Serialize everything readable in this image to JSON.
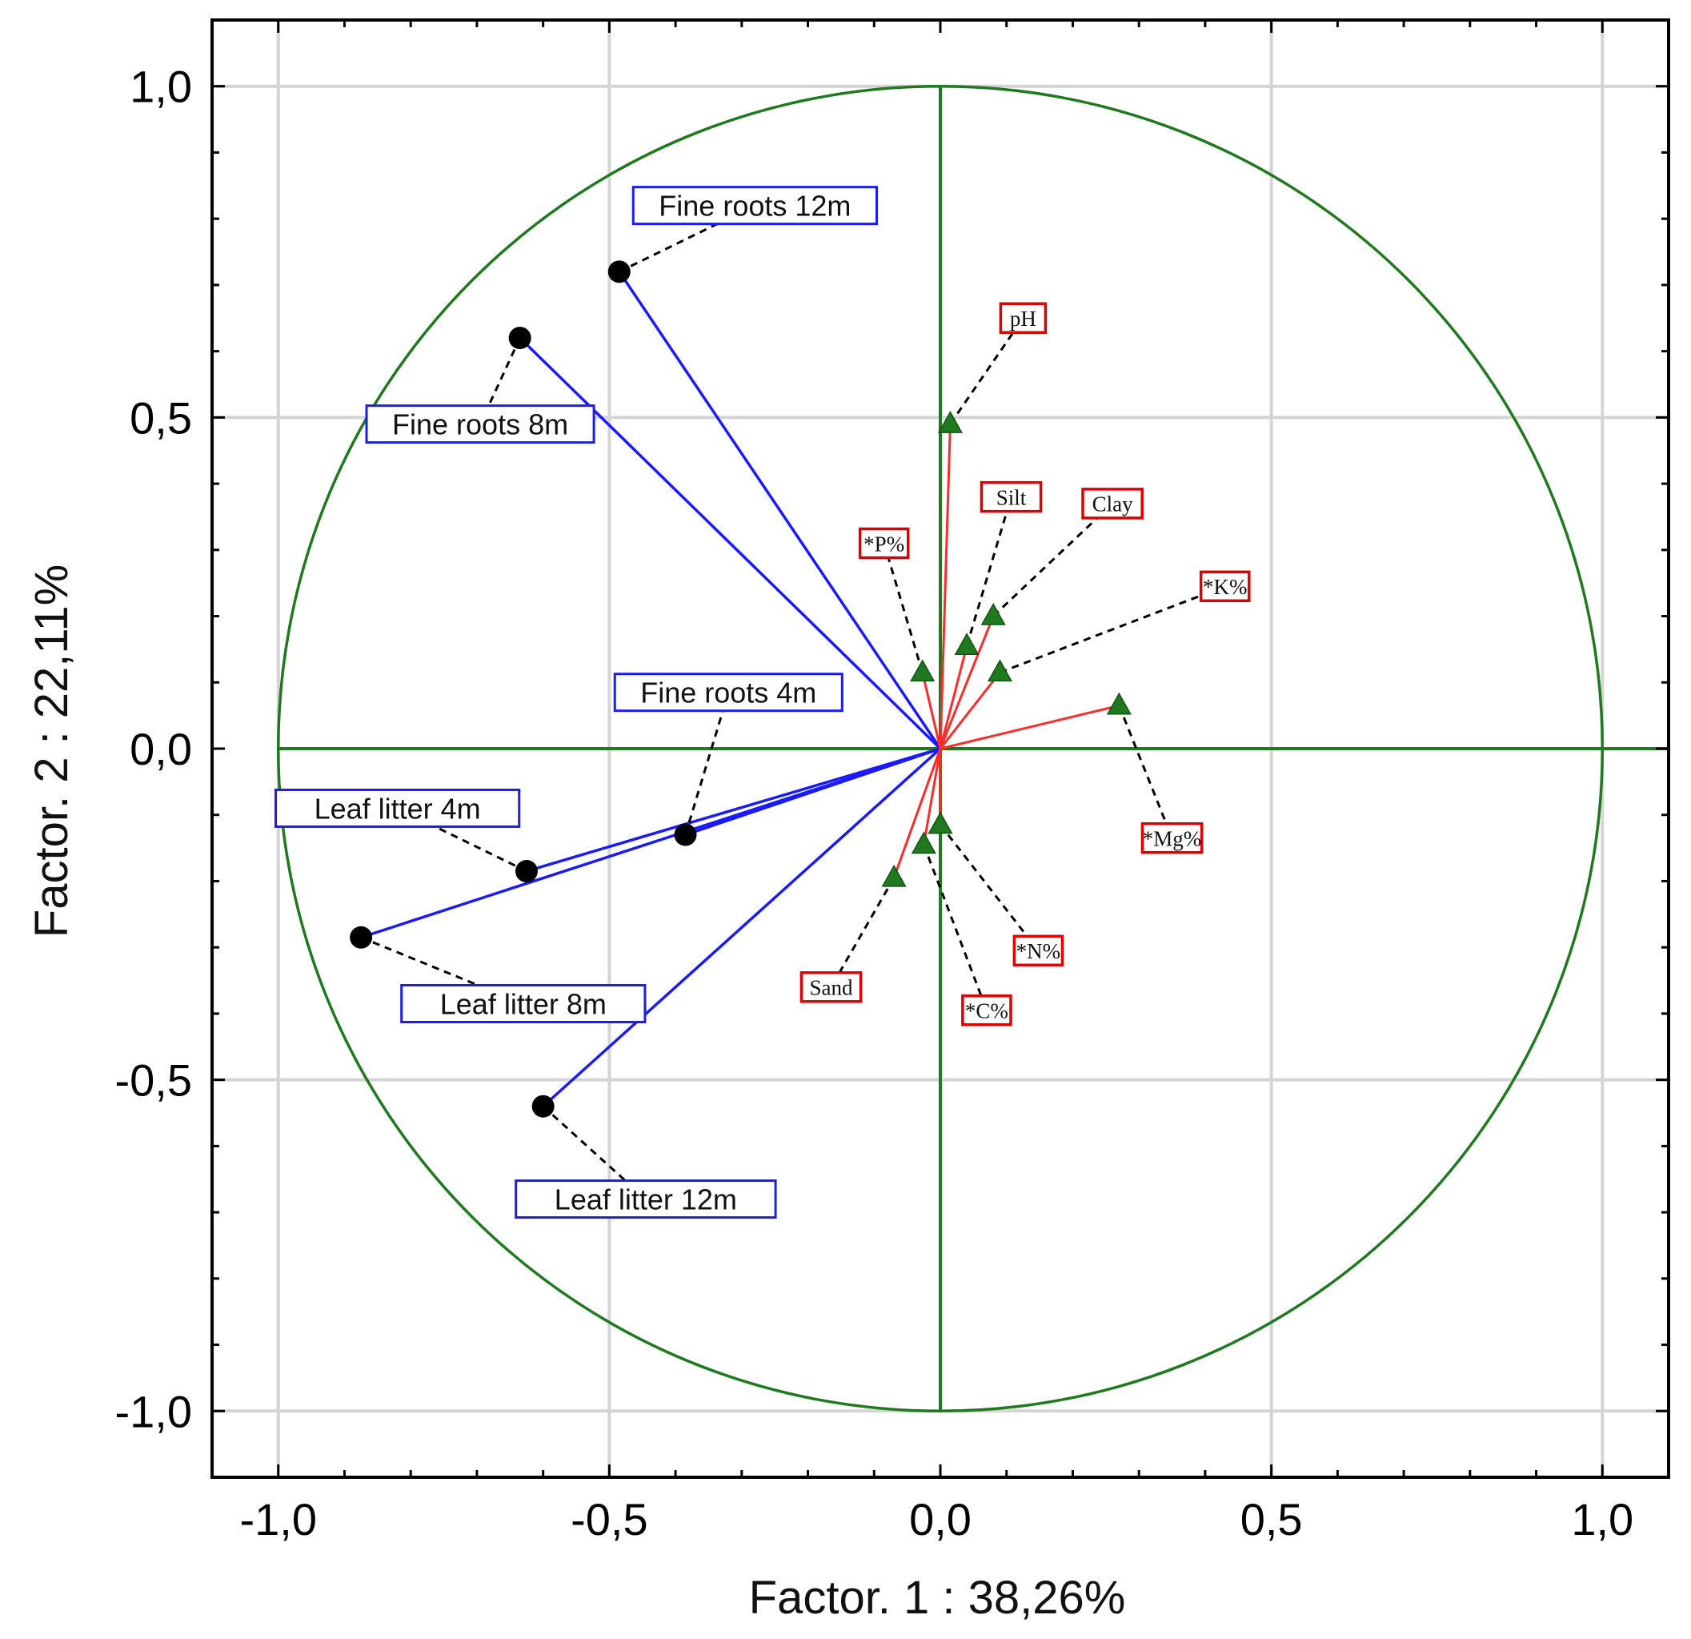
{
  "chart_data": {
    "type": "scatter",
    "title": "",
    "xlabel": "Factor. 1 : 38,26%",
    "ylabel": "Factor. 2 : 22,11%",
    "xlim": [
      -1.1,
      1.1
    ],
    "ylim": [
      -1.1,
      1.1
    ],
    "grid": true,
    "unit_circle": true,
    "x_ticks": [
      {
        "value": -1.0,
        "label": "-1,0"
      },
      {
        "value": -0.5,
        "label": "-0,5"
      },
      {
        "value": 0.0,
        "label": "0,0"
      },
      {
        "value": 0.5,
        "label": "0,5"
      },
      {
        "value": 1.0,
        "label": "1,0"
      }
    ],
    "y_ticks": [
      {
        "value": 1.0,
        "label": "1,0"
      },
      {
        "value": 0.5,
        "label": "0,5"
      },
      {
        "value": 0.0,
        "label": "0,0"
      },
      {
        "value": -0.5,
        "label": "-0,5"
      },
      {
        "value": -1.0,
        "label": "-1,0"
      }
    ],
    "series": [
      {
        "name": "Biological variables",
        "marker": "circle",
        "marker_color": "#000000",
        "vector_color": "#1a1aff",
        "box_color": "#1a1aff",
        "points": [
          {
            "label": "Fine roots 12m",
            "x": -0.485,
            "y": 0.72,
            "lx": -0.28,
            "ly": 0.82
          },
          {
            "label": "Fine roots 8m",
            "x": -0.635,
            "y": 0.62,
            "lx": -0.695,
            "ly": 0.49
          },
          {
            "label": "Fine roots 4m",
            "x": -0.385,
            "y": -0.13,
            "lx": -0.32,
            "ly": 0.085
          },
          {
            "label": "Leaf litter 4m",
            "x": -0.625,
            "y": -0.185,
            "lx": -0.82,
            "ly": -0.09
          },
          {
            "label": "Leaf litter 8m",
            "x": -0.875,
            "y": -0.285,
            "lx": -0.63,
            "ly": -0.385
          },
          {
            "label": "Leaf litter 12m",
            "x": -0.6,
            "y": -0.54,
            "lx": -0.445,
            "ly": -0.68
          }
        ]
      },
      {
        "name": "Soil variables",
        "marker": "triangle",
        "marker_color": "#1f7a1f",
        "vector_color": "#ff2a2a",
        "box_color": "#e00000",
        "points": [
          {
            "label": "pH",
            "x": 0.015,
            "y": 0.49,
            "lx": 0.125,
            "ly": 0.65
          },
          {
            "label": "Silt",
            "x": 0.04,
            "y": 0.155,
            "lx": 0.107,
            "ly": 0.38
          },
          {
            "label": "Clay",
            "x": 0.08,
            "y": 0.2,
            "lx": 0.26,
            "ly": 0.37
          },
          {
            "label": "*P%",
            "x": -0.027,
            "y": 0.115,
            "lx": -0.085,
            "ly": 0.31
          },
          {
            "label": "*K%",
            "x": 0.09,
            "y": 0.115,
            "lx": 0.43,
            "ly": 0.245
          },
          {
            "label": "*Mg%",
            "x": 0.27,
            "y": 0.065,
            "lx": 0.35,
            "ly": -0.135
          },
          {
            "label": "*N%",
            "x": 0.0,
            "y": -0.115,
            "lx": 0.148,
            "ly": -0.305
          },
          {
            "label": "*C%",
            "x": -0.025,
            "y": -0.145,
            "lx": 0.07,
            "ly": -0.395
          },
          {
            "label": "Sand",
            "x": -0.07,
            "y": -0.195,
            "lx": -0.165,
            "ly": -0.36
          }
        ]
      }
    ]
  }
}
